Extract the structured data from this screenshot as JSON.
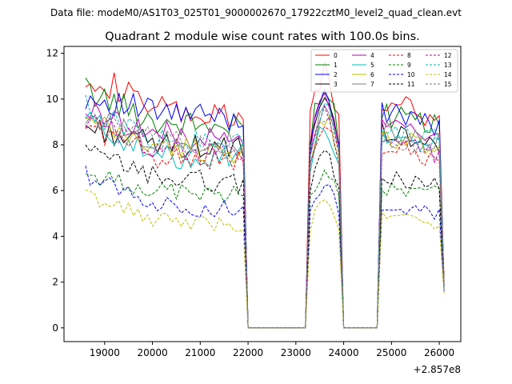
{
  "chart_data": {
    "type": "line",
    "suptitle": "Data file: modeM0/AS1T03_025T01_9000002670_17922cztM0_level2_quad_clean.evt",
    "title": "Quadrant 2 module wise count rates with 100.0s bins.",
    "xlabel": "",
    "ylabel": "",
    "x_offset_label": "+2.857e8",
    "xlim": [
      18150,
      26450
    ],
    "ylim": [
      -0.6,
      12.3
    ],
    "xticks": [
      19000,
      20000,
      21000,
      22000,
      23000,
      24000,
      25000,
      26000
    ],
    "yticks": [
      0,
      2,
      4,
      6,
      8,
      10,
      12
    ],
    "legend_position": "top-right",
    "segments": [
      {
        "start": 18600,
        "end": 21900,
        "drop_to": 22000
      },
      {
        "start": 23300,
        "end": 23900,
        "rise_from": 23200,
        "drop_to": 24000
      },
      {
        "start": 24800,
        "end": 26000,
        "rise_from": 24700,
        "end_drop": 26100
      }
    ],
    "gap_intervals": [
      [
        22000,
        23200
      ],
      [
        24000,
        24700
      ]
    ],
    "series": [
      {
        "name": "0",
        "color": "#ff0000",
        "style": "solid",
        "levels": [
          11.2,
          9.5,
          9.0,
          10.6,
          9.9,
          9.1
        ],
        "end_value": 2.0
      },
      {
        "name": "1",
        "color": "#008000",
        "style": "solid",
        "levels": [
          10.4,
          9.0,
          8.7,
          9.9,
          9.3,
          8.9
        ],
        "end_value": 1.9
      },
      {
        "name": "2",
        "color": "#0000ff",
        "style": "solid",
        "levels": [
          10.1,
          9.4,
          9.1,
          9.8,
          9.5,
          8.8
        ],
        "end_value": 1.8
      },
      {
        "name": "3",
        "color": "#000000",
        "style": "solid",
        "levels": [
          8.8,
          8.0,
          7.8,
          9.2,
          8.6,
          8.0
        ],
        "end_value": 1.9
      },
      {
        "name": "4",
        "color": "#bf00bf",
        "style": "solid",
        "levels": [
          9.5,
          8.5,
          8.1,
          9.4,
          8.8,
          8.5
        ],
        "end_value": 1.9
      },
      {
        "name": "5",
        "color": "#00bfbf",
        "style": "solid",
        "levels": [
          9.2,
          7.4,
          7.6,
          8.2,
          8.4,
          7.9
        ],
        "end_value": 1.8
      },
      {
        "name": "6",
        "color": "#bfbf00",
        "style": "solid",
        "levels": [
          9.0,
          7.9,
          7.7,
          8.7,
          8.3,
          7.9
        ],
        "end_value": 1.8
      },
      {
        "name": "7",
        "color": "#808080",
        "style": "solid",
        "levels": [
          9.3,
          8.2,
          8.0,
          9.0,
          8.6,
          8.1
        ],
        "end_value": 1.8
      },
      {
        "name": "8",
        "color": "#ff0000",
        "style": "dashed",
        "levels": [
          8.9,
          7.5,
          7.3,
          8.6,
          8.0,
          7.3
        ],
        "end_value": 1.7
      },
      {
        "name": "9",
        "color": "#008000",
        "style": "dashed",
        "levels": [
          6.7,
          6.0,
          5.8,
          6.5,
          6.1,
          5.9
        ],
        "end_value": 1.6
      },
      {
        "name": "10",
        "color": "#0000ff",
        "style": "dashed",
        "levels": [
          6.7,
          5.4,
          5.1,
          5.9,
          5.4,
          5.0
        ],
        "end_value": 1.6
      },
      {
        "name": "11",
        "color": "#000000",
        "style": "dashed",
        "levels": [
          7.7,
          6.6,
          6.3,
          7.2,
          6.6,
          6.3
        ],
        "end_value": 1.6
      },
      {
        "name": "12",
        "color": "#bf00bf",
        "style": "dashed",
        "levels": [
          9.1,
          7.9,
          7.5,
          8.8,
          8.3,
          7.6
        ],
        "end_value": 1.7
      },
      {
        "name": "13",
        "color": "#00bfbf",
        "style": "dashed",
        "levels": [
          9.6,
          8.2,
          8.0,
          9.2,
          8.5,
          8.3
        ],
        "end_value": 1.7
      },
      {
        "name": "14",
        "color": "#bfbf00",
        "style": "dashed",
        "levels": [
          5.8,
          4.7,
          4.5,
          5.2,
          5.0,
          4.5
        ],
        "end_value": 1.5
      },
      {
        "name": "15",
        "color": "#808080",
        "style": "dashed",
        "levels": [
          9.3,
          8.1,
          7.8,
          8.8,
          8.2,
          7.7
        ],
        "end_value": 1.7
      }
    ]
  }
}
